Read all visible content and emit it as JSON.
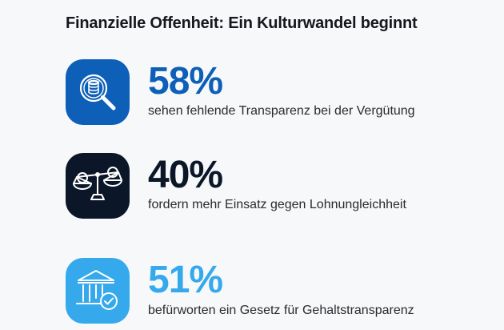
{
  "title": "Finanzielle Offenheit: Ein Kulturwandel beginnt",
  "colors": {
    "blue": "#0d5fb8",
    "navy": "#0b1728",
    "light_blue": "#35a9ec",
    "background": "#f7f8f9"
  },
  "stats": [
    {
      "value": "58%",
      "text": "sehen fehlende Transparenz bei der Vergütung",
      "icon": "magnifier-coins-icon",
      "color": "#0d5fb8"
    },
    {
      "value": "40%",
      "text": "fordern mehr Einsatz gegen Lohnungleichheit",
      "icon": "balance-scale-coins-icon",
      "color": "#0b1728"
    },
    {
      "value": "51%",
      "text": "befürworten ein Gesetz für Gehaltstransparenz",
      "icon": "government-building-check-icon",
      "color": "#35a9ec"
    }
  ]
}
